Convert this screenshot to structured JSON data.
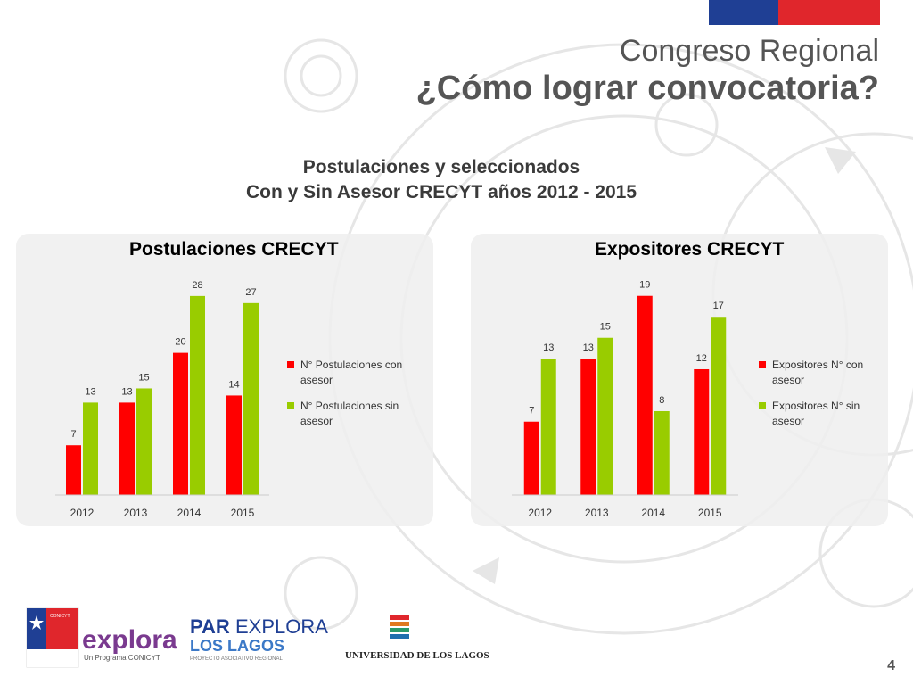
{
  "header": {
    "title_line1": "Congreso Regional",
    "title_line2": "¿Cómo lograr convocatoria?",
    "flag_colors": [
      "#1f3f94",
      "#e0262c"
    ]
  },
  "subtitle": {
    "line1": "Postulaciones y seleccionados",
    "line2": "Con y Sin Asesor CRECYT años 2012 - 2015"
  },
  "chart_data": [
    {
      "type": "bar",
      "title": "Postulaciones CRECYT",
      "categories": [
        "2012",
        "2013",
        "2014",
        "2015"
      ],
      "series": [
        {
          "name": "N° Postulaciones con asesor",
          "legend_lines": [
            "N° Postulaciones con",
            "asesor"
          ],
          "color": "#ff0000",
          "values": [
            7,
            13,
            20,
            14
          ]
        },
        {
          "name": "N° Postulaciones sin asesor",
          "legend_lines": [
            "N° Postulaciones sin",
            "asesor"
          ],
          "color": "#99cc00",
          "values": [
            13,
            15,
            28,
            27
          ]
        }
      ],
      "ylim": [
        0,
        32
      ],
      "grid": false,
      "legend": "right"
    },
    {
      "type": "bar",
      "title": "Expositores CRECYT",
      "categories": [
        "2012",
        "2013",
        "2014",
        "2015"
      ],
      "series": [
        {
          "name": "Expositores N° con asesor",
          "legend_lines": [
            "Expositores N° con",
            "asesor"
          ],
          "color": "#ff0000",
          "values": [
            7,
            13,
            19,
            12
          ]
        },
        {
          "name": "Expositores N° sin asesor",
          "legend_lines": [
            "Expositores N° sin",
            "asesor"
          ],
          "color": "#99cc00",
          "values": [
            13,
            15,
            8,
            17
          ]
        }
      ],
      "ylim": [
        0,
        21.7
      ],
      "grid": false,
      "legend": "right"
    }
  ],
  "logos": {
    "conicyt": "CONICYT",
    "explora": "explora",
    "explora_tagline": "Un Programa CONICYT",
    "parexplora_par": "PAR",
    "parexplora_explora": "EXPLORA",
    "parexplora_region": "LOS LAGOS",
    "parexplora_tagline": "PROYECTO ASOCIATIVO REGIONAL",
    "ulagos": "UNIVERSIDAD DE LOS LAGOS"
  },
  "page_number": "4"
}
